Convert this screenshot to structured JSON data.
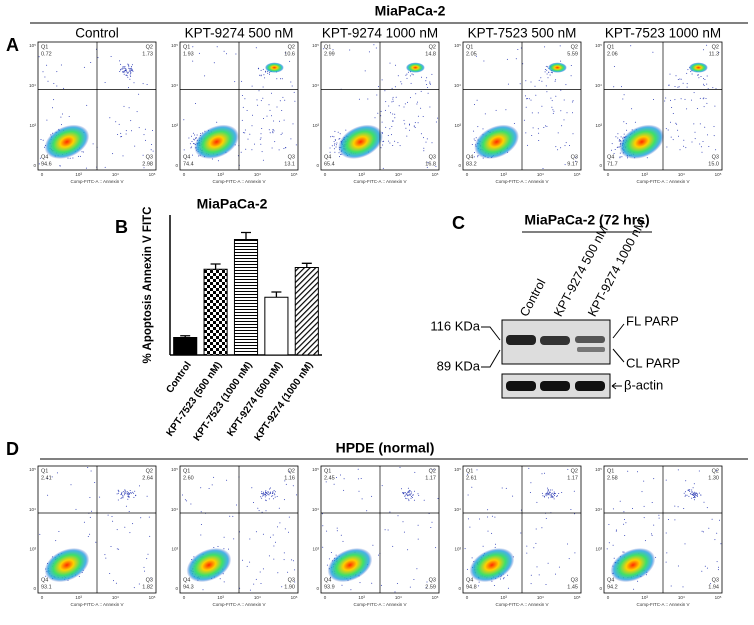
{
  "panel_labels": [
    "A",
    "B",
    "C",
    "D"
  ],
  "panel_a": {
    "title": "MiaPaCa-2",
    "x_axis_label": "Comp-FITC-A :: Annexin V",
    "axis_ticks": [
      "0",
      "10³",
      "10⁴",
      "10⁵"
    ],
    "quadrant_labels": [
      "Q1",
      "Q2",
      "Q3",
      "Q4"
    ],
    "plots": [
      {
        "title": "Control",
        "values": [
          "0.72",
          "1.73",
          "2.98",
          "94.6"
        ]
      },
      {
        "title": "KPT-9274 500 nM",
        "values": [
          "1.93",
          "10.6",
          "13.1",
          "74.4"
        ]
      },
      {
        "title": "KPT-9274 1000 nM",
        "values": [
          "2.99",
          "14.8",
          "16.8",
          "65.4"
        ]
      },
      {
        "title": "KPT-7523 500 nM",
        "values": [
          "2.05",
          "5.59",
          "9.17",
          "83.2"
        ]
      },
      {
        "title": "KPT-7523 1000 nM",
        "values": [
          "2.06",
          "11.3",
          "15.0",
          "71.7"
        ]
      }
    ]
  },
  "chart_data": {
    "type": "bar",
    "title": "MiaPaCa-2",
    "y_label": "% Apoptosis Annexin V FITC",
    "categories": [
      "Control",
      "KPT-7523 (500 nM)",
      "KPT-7523 (1000 nM)",
      "KPT-9274 (500 nM)",
      "KPT-9274 (1000 nM)"
    ],
    "values": [
      5,
      24.5,
      33,
      16.5,
      25
    ],
    "errors": [
      0.5,
      1.5,
      2,
      1.5,
      1.2
    ],
    "patterns": [
      "solid",
      "checker",
      "hlines",
      "none",
      "diagonal"
    ],
    "color": "#000000",
    "ylim": [
      0,
      40
    ]
  },
  "panel_c": {
    "title": "MiaPaCa-2 (72 hrs)",
    "lanes": [
      "Control",
      "KPT-9274 500 nM",
      "KPT-9274 1000 nM"
    ],
    "markers": [
      "116 KDa",
      "89 KDa"
    ],
    "bands": [
      "FL PARP",
      "CL PARP",
      "β-actin"
    ]
  },
  "panel_d": {
    "title": "HPDE (normal)",
    "x_axis_label": "Comp-FITC-A :: Annexin V",
    "plots": [
      {
        "values": [
          "2.41",
          "2.64",
          "1.82",
          "93.1"
        ]
      },
      {
        "values": [
          "2.60",
          "1.16",
          "1.90",
          "94.3"
        ]
      },
      {
        "values": [
          "2.45",
          "1.17",
          "2.59",
          "93.9"
        ]
      },
      {
        "values": [
          "2.61",
          "1.17",
          "1.45",
          "94.8"
        ]
      },
      {
        "values": [
          "2.58",
          "1.30",
          "1.94",
          "94.2"
        ]
      }
    ]
  }
}
